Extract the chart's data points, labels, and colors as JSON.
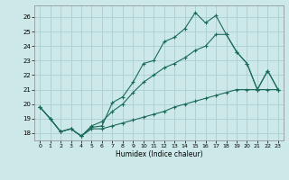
{
  "xlabel": "Humidex (Indice chaleur)",
  "bg_color": "#cce8e8",
  "grid_color": "#aacece",
  "line_color": "#1a6b5a",
  "xlim": [
    -0.5,
    23.5
  ],
  "ylim": [
    17.5,
    26.8
  ],
  "xticks": [
    0,
    1,
    2,
    3,
    4,
    5,
    6,
    7,
    8,
    9,
    10,
    11,
    12,
    13,
    14,
    15,
    16,
    17,
    18,
    19,
    20,
    21,
    22,
    23
  ],
  "yticks": [
    18,
    19,
    20,
    21,
    22,
    23,
    24,
    25,
    26
  ],
  "line1_x": [
    0,
    1,
    2,
    3,
    4,
    5,
    6,
    7,
    8,
    9,
    10,
    11,
    12,
    13,
    14,
    15,
    16,
    17,
    18,
    19,
    20,
    21,
    22,
    23
  ],
  "line1_y": [
    19.8,
    19.0,
    18.1,
    18.3,
    17.8,
    18.4,
    18.5,
    20.1,
    20.5,
    21.5,
    22.8,
    23.0,
    24.3,
    24.6,
    25.2,
    26.3,
    25.6,
    26.1,
    24.8,
    23.6,
    22.8,
    21.0,
    22.3,
    21.0
  ],
  "line2_x": [
    0,
    1,
    2,
    3,
    4,
    5,
    6,
    7,
    8,
    9,
    10,
    11,
    12,
    13,
    14,
    15,
    16,
    17,
    18,
    19,
    20,
    21,
    22,
    23
  ],
  "line2_y": [
    19.8,
    19.0,
    18.1,
    18.3,
    17.8,
    18.5,
    18.8,
    19.5,
    20.0,
    20.8,
    21.5,
    22.0,
    22.5,
    22.8,
    23.2,
    23.7,
    24.0,
    24.8,
    24.8,
    23.6,
    22.8,
    21.0,
    22.3,
    21.0
  ],
  "line3_x": [
    0,
    1,
    2,
    3,
    4,
    5,
    6,
    7,
    8,
    9,
    10,
    11,
    12,
    13,
    14,
    15,
    16,
    17,
    18,
    19,
    20,
    21,
    22,
    23
  ],
  "line3_y": [
    19.8,
    19.0,
    18.1,
    18.3,
    17.8,
    18.3,
    18.3,
    18.5,
    18.7,
    18.9,
    19.1,
    19.3,
    19.5,
    19.8,
    20.0,
    20.2,
    20.4,
    20.6,
    20.8,
    21.0,
    21.0,
    21.0,
    21.0,
    21.0
  ]
}
